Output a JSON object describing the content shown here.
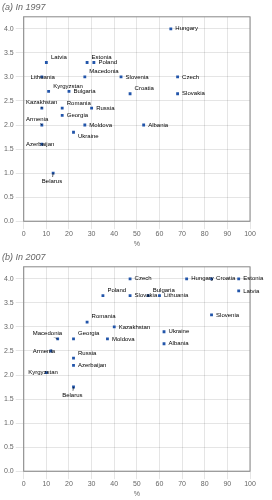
{
  "chart_data": [
    {
      "type": "scatter",
      "title": "(a) In 1997",
      "x_label": "%",
      "x": [
        65,
        28,
        31,
        10,
        43,
        8,
        27,
        68,
        11,
        20,
        68,
        47,
        8,
        17,
        30,
        17,
        8,
        27,
        22,
        53,
        8,
        13
      ],
      "values": [
        4.0,
        3.3,
        3.3,
        3.3,
        3.0,
        3.0,
        3.0,
        3.0,
        2.7,
        2.7,
        2.65,
        2.65,
        2.35,
        2.35,
        2.35,
        2.2,
        2.0,
        2.0,
        1.85,
        2.0,
        1.6,
        1.0
      ],
      "color": "#2255aa",
      "marker": "square",
      "grid": true,
      "xlim": [
        0,
        100
      ],
      "ylim": [
        0,
        4.25
      ],
      "xticks": [
        0,
        10,
        20,
        30,
        40,
        50,
        60,
        70,
        80,
        90,
        100
      ],
      "yticks": [
        {
          "value": 0,
          "label": "0.0"
        },
        0.5,
        {
          "value": 1,
          "label": "1.0"
        },
        1.5,
        {
          "value": 2,
          "label": "2.0"
        },
        2.5,
        {
          "value": 3,
          "label": "3.0"
        },
        3.5,
        {
          "value": 4,
          "label": "4.0"
        }
      ],
      "annotations": [
        {
          "text": "Hungary",
          "x": 65,
          "y": 4.0,
          "text_x": 67,
          "text_y": 4.0
        },
        {
          "text": "Estonia",
          "x": 28,
          "y": 3.3,
          "text_x": 30,
          "text_y": 3.35
        },
        {
          "text": "Poland",
          "x": 31,
          "y": 3.3,
          "text_x": 33,
          "text_y": 3.3
        },
        {
          "text": "Latvia",
          "x": 10,
          "y": 3.3,
          "text_x": 12,
          "text_y": 3.35
        },
        {
          "text": "Slovenia",
          "x": 43,
          "y": 3.0,
          "text_x": 45,
          "text_y": 3.0
        },
        {
          "text": "Lithuania",
          "x": 8,
          "y": 3.0,
          "text_x": 3,
          "text_y": 3.0
        },
        {
          "text": "Macedonia",
          "x": 27,
          "y": 3.0,
          "text_x": 29,
          "text_y": 3.05
        },
        {
          "text": "Czech",
          "x": 68,
          "y": 3.0,
          "text_x": 70,
          "text_y": 3.0
        },
        {
          "text": "Kyrgyzstan",
          "x": 11,
          "y": 2.7,
          "text_x": 13,
          "text_y": 2.75
        },
        {
          "text": "Bulgaria",
          "x": 20,
          "y": 2.7,
          "text_x": 22,
          "text_y": 2.7
        },
        {
          "text": "Slovakia",
          "x": 68,
          "y": 2.65,
          "text_x": 70,
          "text_y": 2.65
        },
        {
          "text": "Croatia",
          "x": 47,
          "y": 2.65,
          "text_x": 49,
          "text_y": 2.7
        },
        {
          "text": "Kazakhstan",
          "x": 8,
          "y": 2.35,
          "text_x": 1,
          "text_y": 2.4
        },
        {
          "text": "Romania",
          "x": 17,
          "y": 2.35,
          "text_x": 19,
          "text_y": 2.38
        },
        {
          "text": "Russia",
          "x": 30,
          "y": 2.35,
          "text_x": 32,
          "text_y": 2.35
        },
        {
          "text": "Georgia",
          "x": 17,
          "y": 2.2,
          "text_x": 19,
          "text_y": 2.2
        },
        {
          "text": "Armenia",
          "x": 8,
          "y": 2.0,
          "text_x": 1,
          "text_y": 2.05
        },
        {
          "text": "Moldova",
          "x": 27,
          "y": 2.0,
          "text_x": 29,
          "text_y": 2.0
        },
        {
          "text": "Ukraine",
          "x": 22,
          "y": 1.85,
          "text_x": 24,
          "text_y": 1.82
        },
        {
          "text": "Albania",
          "x": 53,
          "y": 2.0,
          "text_x": 55,
          "text_y": 2.0
        },
        {
          "text": "Azerbaijan",
          "x": 8,
          "y": 1.6,
          "text_x": 1,
          "text_y": 1.6
        },
        {
          "text": "Belarus",
          "x": 13,
          "y": 1.0,
          "text_x": 8,
          "text_y": 0.9
        }
      ]
    },
    {
      "type": "scatter",
      "title": "(b) In 2007",
      "x_label": "%",
      "x": [
        47,
        72,
        83,
        95,
        95,
        35,
        47,
        60,
        55,
        83,
        28,
        40,
        15,
        22,
        37,
        62,
        62,
        12,
        22,
        22,
        10,
        22
      ],
      "values": [
        4.0,
        4.0,
        4.0,
        4.0,
        3.75,
        3.65,
        3.65,
        3.65,
        3.65,
        3.25,
        3.1,
        3.0,
        2.75,
        2.75,
        2.75,
        2.9,
        2.65,
        2.5,
        2.35,
        2.2,
        2.05,
        1.75
      ],
      "color": "#2255aa",
      "marker": "square",
      "grid": true,
      "xlim": [
        0,
        100
      ],
      "ylim": [
        0,
        4.25
      ],
      "xticks": [
        0,
        10,
        20,
        30,
        40,
        50,
        60,
        70,
        80,
        90,
        100
      ],
      "yticks": [
        {
          "value": 0,
          "label": "0.0"
        },
        0.5,
        {
          "value": 1,
          "label": "1.0"
        },
        1.5,
        {
          "value": 2,
          "label": "2.0"
        },
        2.5,
        {
          "value": 3,
          "label": "3.0"
        },
        3.5,
        {
          "value": 4,
          "label": "4.0"
        }
      ],
      "annotations": [
        {
          "text": "Czech",
          "x": 47,
          "y": 4.0,
          "text_x": 49,
          "text_y": 4.0
        },
        {
          "text": "Hungary",
          "x": 72,
          "y": 4.0,
          "text_x": 74,
          "text_y": 4.0
        },
        {
          "text": "Croatia",
          "x": 83,
          "y": 4.0,
          "text_x": 85,
          "text_y": 4.0
        },
        {
          "text": "Estonia",
          "x": 95,
          "y": 4.0,
          "text_x": 97,
          "text_y": 4.0
        },
        {
          "text": "Latvia",
          "x": 95,
          "y": 3.75,
          "text_x": 97,
          "text_y": 3.75
        },
        {
          "text": "Poland",
          "x": 35,
          "y": 3.65,
          "text_x": 37,
          "text_y": 3.7
        },
        {
          "text": "Slovakia",
          "x": 47,
          "y": 3.65,
          "text_x": 49,
          "text_y": 3.65
        },
        {
          "text": "Lithuania",
          "x": 60,
          "y": 3.65,
          "text_x": 62,
          "text_y": 3.65
        },
        {
          "text": "Bulgaria",
          "x": 55,
          "y": 3.65,
          "text_x": 57,
          "text_y": 3.7
        },
        {
          "text": "Slovenia",
          "x": 83,
          "y": 3.25,
          "text_x": 85,
          "text_y": 3.25
        },
        {
          "text": "Romania",
          "x": 28,
          "y": 3.1,
          "text_x": 30,
          "text_y": 3.15
        },
        {
          "text": "Kazakhstan",
          "x": 40,
          "y": 3.0,
          "text_x": 42,
          "text_y": 3.0
        },
        {
          "text": "Macedonia",
          "x": 15,
          "y": 2.75,
          "text_x": 4,
          "text_y": 2.8
        },
        {
          "text": "Georgia",
          "x": 22,
          "y": 2.75,
          "text_x": 24,
          "text_y": 2.8
        },
        {
          "text": "Moldova",
          "x": 37,
          "y": 2.75,
          "text_x": 39,
          "text_y": 2.75
        },
        {
          "text": "Ukraine",
          "x": 62,
          "y": 2.9,
          "text_x": 64,
          "text_y": 2.9
        },
        {
          "text": "Albania",
          "x": 62,
          "y": 2.65,
          "text_x": 64,
          "text_y": 2.65
        },
        {
          "text": "Armenia",
          "x": 12,
          "y": 2.5,
          "text_x": 4,
          "text_y": 2.5
        },
        {
          "text": "Russia",
          "x": 22,
          "y": 2.35,
          "text_x": 24,
          "text_y": 2.38
        },
        {
          "text": "Azerbaijan",
          "x": 22,
          "y": 2.2,
          "text_x": 24,
          "text_y": 2.2
        },
        {
          "text": "Kyrgyzstan",
          "x": 10,
          "y": 2.05,
          "text_x": 2,
          "text_y": 2.05
        },
        {
          "text": "Belarus",
          "x": 22,
          "y": 1.75,
          "text_x": 17,
          "text_y": 1.65
        }
      ]
    }
  ]
}
